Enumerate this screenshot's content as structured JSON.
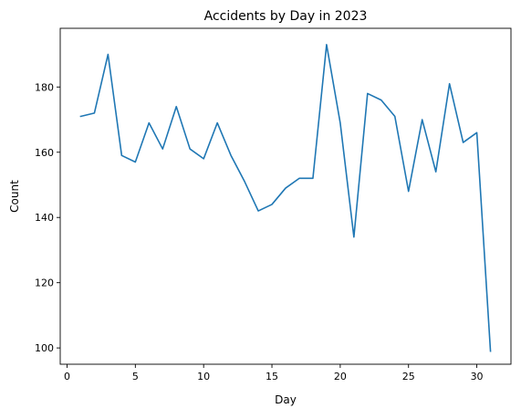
{
  "chart_data": {
    "type": "line",
    "title": "Accidents by Day in 2023",
    "xlabel": "Day",
    "ylabel": "Count",
    "xlim": [
      -0.5,
      32.5
    ],
    "ylim": [
      95,
      198
    ],
    "xticks": [
      0,
      5,
      10,
      15,
      20,
      25,
      30
    ],
    "yticks": [
      100,
      120,
      140,
      160,
      180
    ],
    "grid": false,
    "series": [
      {
        "color": "#1f77b4",
        "x": [
          1,
          2,
          3,
          4,
          5,
          6,
          7,
          8,
          9,
          10,
          11,
          12,
          13,
          14,
          15,
          16,
          17,
          18,
          19,
          20,
          21,
          22,
          23,
          24,
          25,
          26,
          27,
          28,
          29,
          30,
          31
        ],
        "y": [
          171,
          172,
          190,
          159,
          157,
          169,
          161,
          174,
          161,
          158,
          169,
          159,
          151,
          142,
          144,
          149,
          152,
          152,
          193,
          169,
          134,
          178,
          176,
          171,
          148,
          170,
          154,
          181,
          163,
          166,
          99
        ]
      }
    ]
  }
}
